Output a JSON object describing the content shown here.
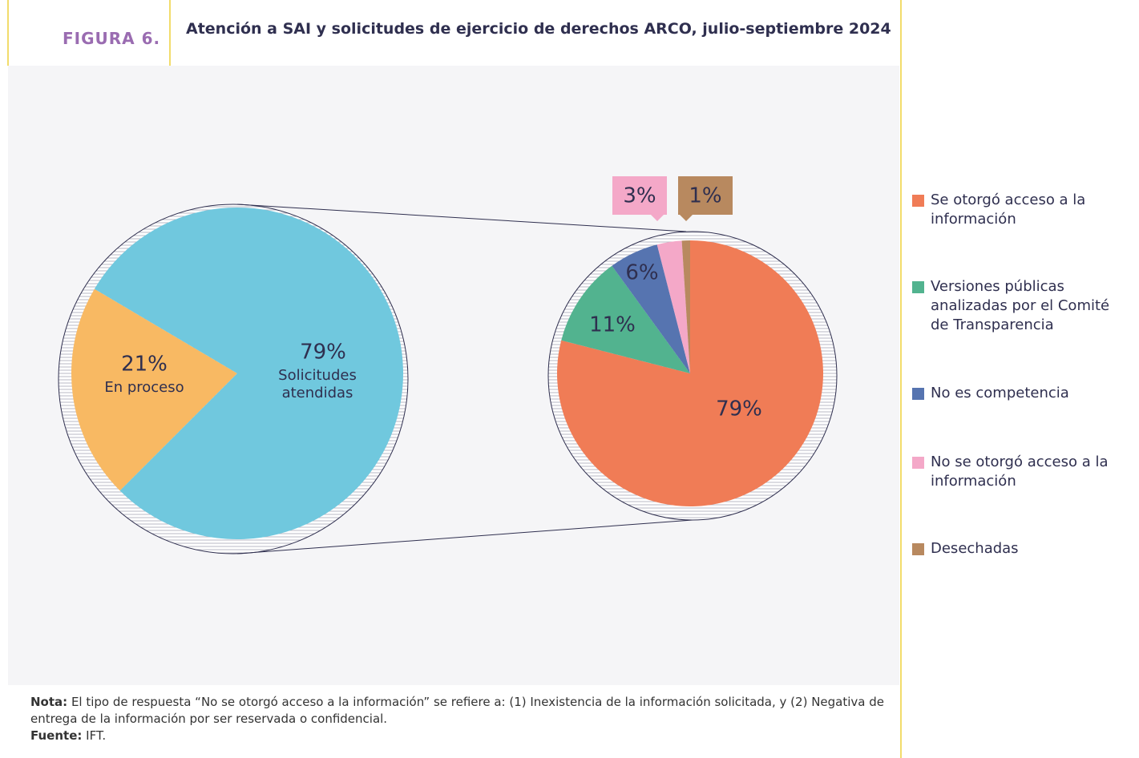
{
  "figure_label": "FIGURA 6.",
  "title": "Atención a SAI y solicitudes de ejercicio de derechos ARCO, julio-septiembre 2024",
  "chart_data": [
    {
      "type": "pie",
      "categories": [
        "En proceso",
        "Solicitudes atendidas"
      ],
      "values": [
        21,
        79
      ],
      "value_labels": [
        "21%",
        "79%"
      ],
      "colors": [
        "#f8b963",
        "#70c8de"
      ]
    },
    {
      "type": "pie",
      "categories": [
        "Se otorgó acceso a la información",
        "Versiones públicas analizadas por el Comité de Transparencia",
        "No es competencia",
        "No se otorgó acceso a la información",
        "Desechadas"
      ],
      "values": [
        79,
        11,
        6,
        3,
        1
      ],
      "value_labels": [
        "79%",
        "11%",
        "6%",
        "3%",
        "1%"
      ],
      "colors": [
        "#f07c56",
        "#52b38f",
        "#5674b0",
        "#f4a8c8",
        "#b8895f"
      ]
    }
  ],
  "note": {
    "label": "Nota:",
    "text": "El tipo de respuesta “No se otorgó acceso a la información” se refiere a: (1) Inexistencia de la información solicitada, y (2) Negativa de entrega de la información por ser reservada o confidencial."
  },
  "source": {
    "label": "Fuente:",
    "text": "IFT."
  }
}
